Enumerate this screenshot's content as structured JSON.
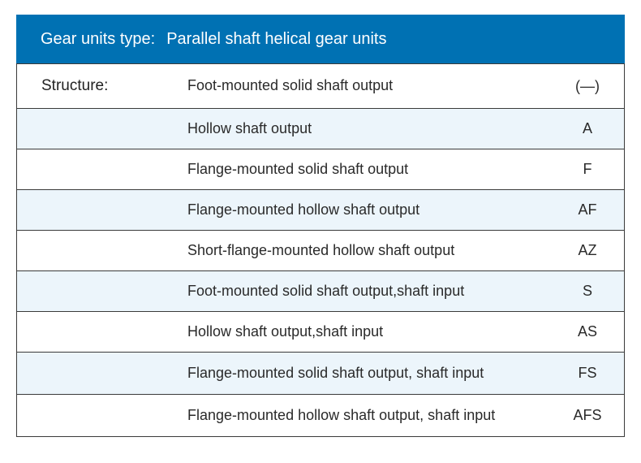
{
  "colors": {
    "header_bg": "#0071b3",
    "header_text": "#ffffff",
    "row_border": "#3a3a3a",
    "row_bg_alt": "#ecf5fb",
    "row_bg": "#ffffff",
    "text": "#2a2a2a"
  },
  "header": {
    "label": "Gear units type:",
    "value": "Parallel shaft helical gear units"
  },
  "leftLabel": "Structure:",
  "rows": [
    {
      "desc": "Foot-mounted solid shaft output",
      "code": "(—)",
      "height": 56
    },
    {
      "desc": "Hollow shaft output",
      "code": "A",
      "height": 50
    },
    {
      "desc": "Flange-mounted solid shaft output",
      "code": "F",
      "height": 50
    },
    {
      "desc": "Flange-mounted hollow shaft output",
      "code": "AF",
      "height": 50
    },
    {
      "desc": "Short-flange-mounted hollow shaft output",
      "code": "AZ",
      "height": 50
    },
    {
      "desc": "Foot-mounted solid shaft output,shaft input",
      "code": "S",
      "height": 50
    },
    {
      "desc": "Hollow shaft output,shaft input",
      "code": "AS",
      "height": 50
    },
    {
      "desc": "Flange-mounted solid shaft output, shaft input",
      "code": "FS",
      "height": 52
    },
    {
      "desc": "Flange-mounted hollow shaft output, shaft input",
      "code": "AFS",
      "height": 52
    }
  ]
}
